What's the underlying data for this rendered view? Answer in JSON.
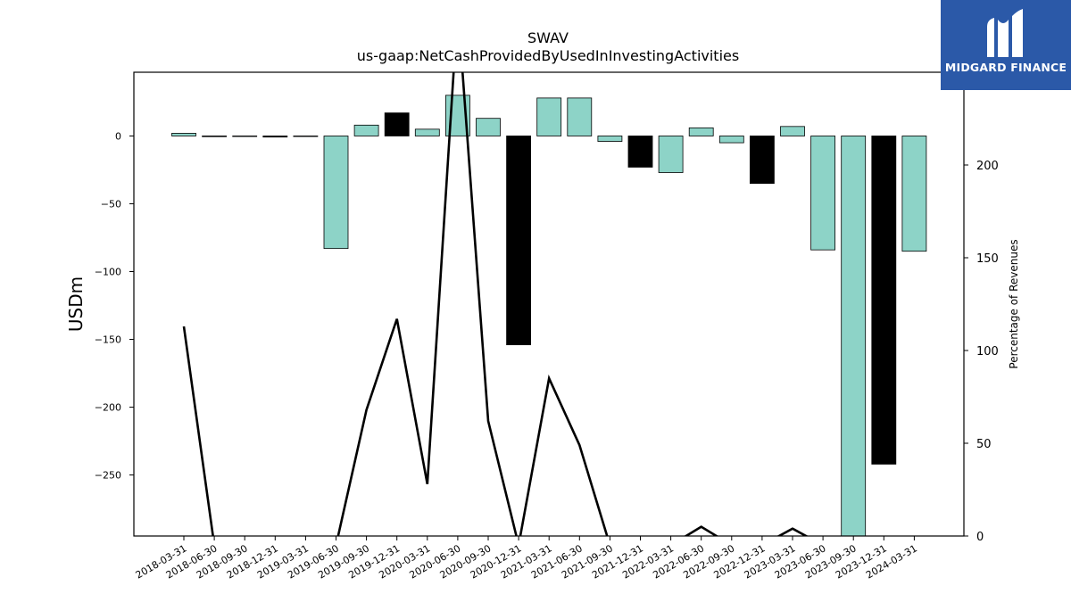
{
  "logo": {
    "text": "MIDGARD FINANCE",
    "icon": "midgard-logo-icon",
    "color": "#2b59a8"
  },
  "chart_data": {
    "type": "bar",
    "title": "SWAV",
    "subtitle": "us-gaap:NetCashProvidedByUsedInInvestingActivities",
    "ylabel": "USDm",
    "y2label": "Percentage of Revenues",
    "ylim": [
      -295,
      47
    ],
    "y2lim": [
      0,
      250
    ],
    "yticks": [
      0,
      -50,
      -100,
      -150,
      -200,
      -250
    ],
    "y2ticks": [
      0,
      50,
      100,
      150,
      200
    ],
    "grid": false,
    "categories": [
      "2018-03-31",
      "2018-06-30",
      "2018-09-30",
      "2018-12-31",
      "2019-03-31",
      "2019-06-30",
      "2019-09-30",
      "2019-12-31",
      "2020-03-31",
      "2020-06-30",
      "2020-09-30",
      "2020-12-31",
      "2021-03-31",
      "2021-06-30",
      "2021-09-30",
      "2021-12-31",
      "2022-03-31",
      "2022-06-30",
      "2022-09-30",
      "2022-12-31",
      "2023-03-31",
      "2023-06-30",
      "2023-09-30",
      "2023-12-31",
      "2024-03-31"
    ],
    "series": [
      {
        "type": "bar",
        "values": [
          2,
          -0.5,
          -0.3,
          -0.8,
          -0.4,
          -83,
          8,
          17,
          5,
          30,
          13,
          -154,
          28,
          28,
          -4,
          -23,
          -27,
          6,
          -5,
          -35,
          7,
          -84,
          -297,
          -242,
          -85
        ],
        "colors": [
          "#8dd3c7",
          "#8dd3c7",
          "#8dd3c7",
          "#000000",
          "#8dd3c7",
          "#8dd3c7",
          "#8dd3c7",
          "#000000",
          "#8dd3c7",
          "#8dd3c7",
          "#8dd3c7",
          "#000000",
          "#8dd3c7",
          "#8dd3c7",
          "#8dd3c7",
          "#000000",
          "#8dd3c7",
          "#8dd3c7",
          "#8dd3c7",
          "#000000",
          "#8dd3c7",
          "#8dd3c7",
          "#8dd3c7",
          "#000000",
          "#8dd3c7"
        ]
      },
      {
        "type": "line",
        "axis": "right",
        "color": "#000000",
        "values": [
          113,
          -5,
          -5,
          -5,
          -5,
          -5,
          68,
          117,
          28,
          285,
          62,
          -5,
          85,
          49,
          -5,
          -5,
          -5,
          5,
          -5,
          -5,
          4,
          -5,
          -5,
          -5,
          -5
        ]
      }
    ]
  }
}
